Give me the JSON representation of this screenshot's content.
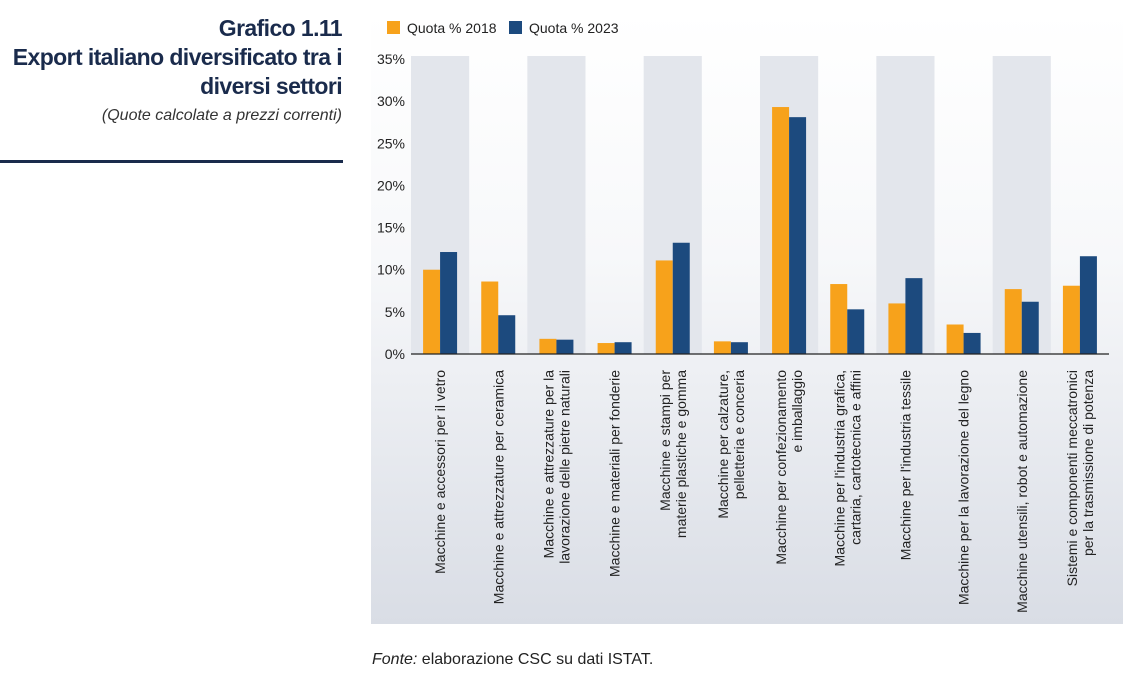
{
  "header": {
    "number": "Grafico 1.11",
    "title": "Export italiano diversificato tra i diversi settori",
    "subtitle": "(Quote calcolate a prezzi correnti)"
  },
  "source": {
    "label": "Fonte:",
    "text": " elaborazione CSC su dati ISTAT."
  },
  "colors": {
    "series_2018": "#f7a21b",
    "series_2023": "#1c4a7e",
    "band": "#e3e6ec"
  },
  "chart_data": {
    "type": "bar",
    "legend_position": "top-left",
    "ylim": [
      0,
      35
    ],
    "y_ticks": [
      "0%",
      "5%",
      "10%",
      "15%",
      "20%",
      "25%",
      "30%",
      "35%"
    ],
    "categories": [
      "Macchine e accessori per il vetro",
      "Macchine e attrezzature per ceramica",
      "Macchine e attrezzature per la lavorazione delle pietre naturali",
      "Macchine e materiali per fonderie",
      "Macchine e stampi per materie plastiche e gomma",
      "Macchine per calzature, pelletteria e conceria",
      "Macchine per confezionamento e imballaggio",
      "Macchine per l'industria grafica, cartaria, cartotecnica e affini",
      "Macchine per l'industria tessile",
      "Macchine per la lavorazione del legno",
      "Macchine utensili, robot e automazione",
      "Sistemi e componenti meccatronici per la trasmissione di potenza"
    ],
    "category_lines": [
      [
        "Macchine e accessori per il vetro"
      ],
      [
        "Macchine e attrezzature per ceramica"
      ],
      [
        "Macchine e attrezzature per la",
        "lavorazione delle pietre naturali"
      ],
      [
        "Macchine e materiali per fonderie"
      ],
      [
        "Macchine e stampi per",
        "materie plastiche e gomma"
      ],
      [
        "Macchine per calzature,",
        "pelletteria e conceria"
      ],
      [
        "Macchine per confezionamento",
        "e imballaggio"
      ],
      [
        "Macchine per l'industria grafica,",
        "cartaria, cartotecnica e affini"
      ],
      [
        "Macchine per l'industria tessile"
      ],
      [
        "Macchine per la lavorazione del legno"
      ],
      [
        "Macchine utensili, robot e automazione"
      ],
      [
        "Sistemi e componenti meccatronici",
        "per la trasmissione di potenza"
      ]
    ],
    "series": [
      {
        "name": "Quota % 2018",
        "values": [
          10.0,
          8.6,
          1.8,
          1.3,
          11.1,
          1.5,
          29.3,
          8.3,
          6.0,
          3.5,
          7.7,
          8.1
        ]
      },
      {
        "name": "Quota % 2023",
        "values": [
          12.1,
          4.6,
          1.7,
          1.4,
          13.2,
          1.4,
          28.1,
          5.3,
          9.0,
          2.5,
          6.2,
          11.6
        ]
      }
    ]
  }
}
